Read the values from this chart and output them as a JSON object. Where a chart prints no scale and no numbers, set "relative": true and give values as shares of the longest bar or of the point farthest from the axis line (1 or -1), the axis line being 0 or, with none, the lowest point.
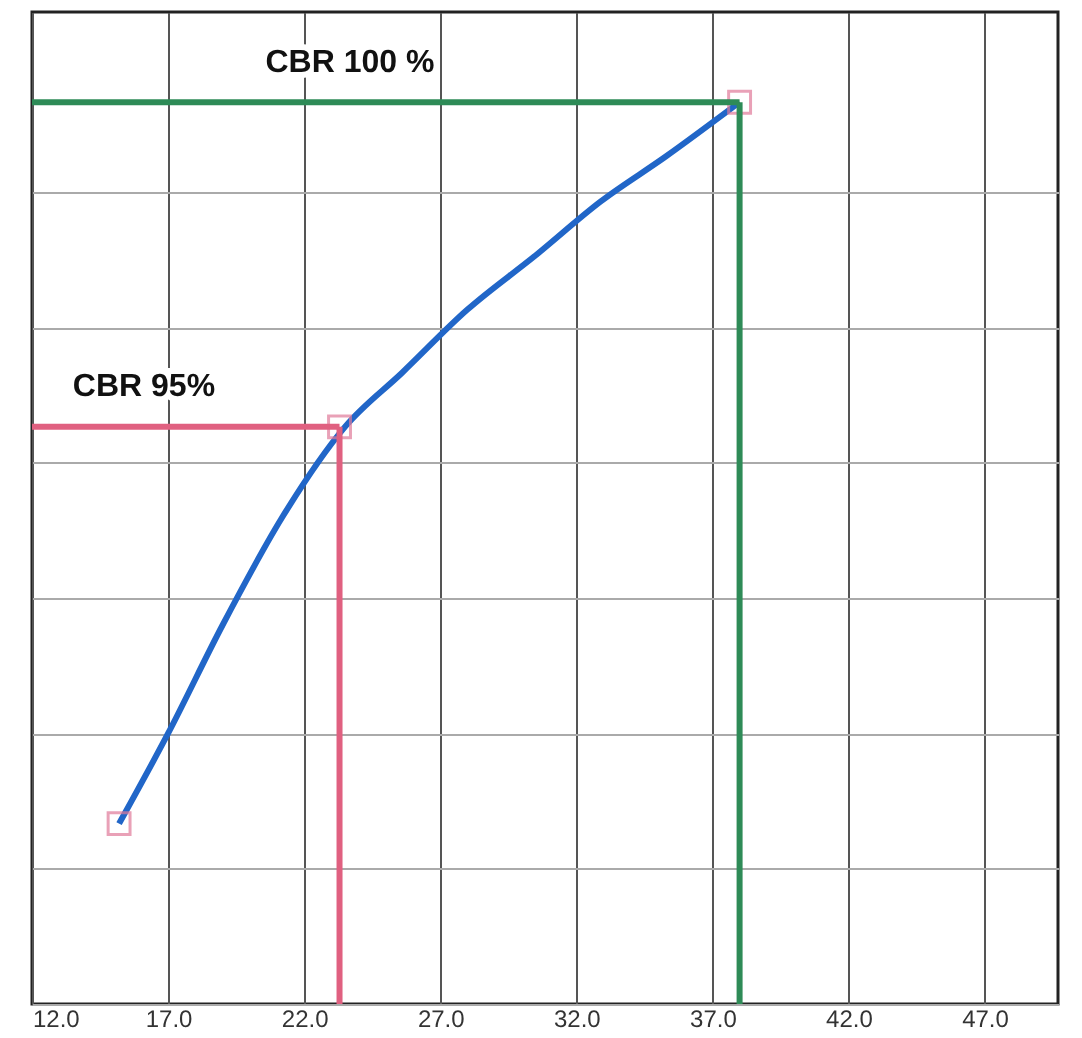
{
  "chart_data": {
    "type": "line",
    "relative": true,
    "grid": true,
    "xlim": [
      12,
      49.7
    ],
    "xticks": [
      {
        "value": 12,
        "label": "12.0"
      },
      {
        "value": 17,
        "label": "17.0"
      },
      {
        "value": 22,
        "label": "22.0"
      },
      {
        "value": 27,
        "label": "27.0"
      },
      {
        "value": 32,
        "label": "32.0"
      },
      {
        "value": 37,
        "label": "37.0"
      },
      {
        "value": 42,
        "label": "42.0"
      },
      {
        "value": 47,
        "label": "47.0"
      }
    ],
    "series": [
      {
        "color": "#2166c8",
        "marker": "none",
        "x": [
          15.2,
          17.0,
          19.0,
          21.2,
          23.5,
          25.6,
          28.0,
          30.5,
          32.9,
          35.3,
          38.0
        ],
        "values": [
          0.2,
          0.3,
          0.42,
          0.54,
          0.64,
          0.7,
          0.77,
          0.83,
          0.89,
          0.94,
          1.0
        ]
      },
      {
        "type": "scatter",
        "color": "#e07a9a",
        "marker": "square",
        "x": [
          15.2,
          23.3,
          38.0
        ],
        "values": [
          0.2,
          0.64,
          1.0
        ]
      }
    ],
    "ref_lines": [
      {
        "axis": "x",
        "value": 23.3,
        "color": "#e06080"
      },
      {
        "axis": "y",
        "value": 0.64,
        "color": "#e06080",
        "label": "CBR 95%"
      },
      {
        "axis": "x",
        "value": 38.0,
        "color": "#2e8b57"
      },
      {
        "axis": "y",
        "value": 1.0,
        "color": "#2e8b57",
        "label": "CBR 100 %"
      }
    ]
  }
}
